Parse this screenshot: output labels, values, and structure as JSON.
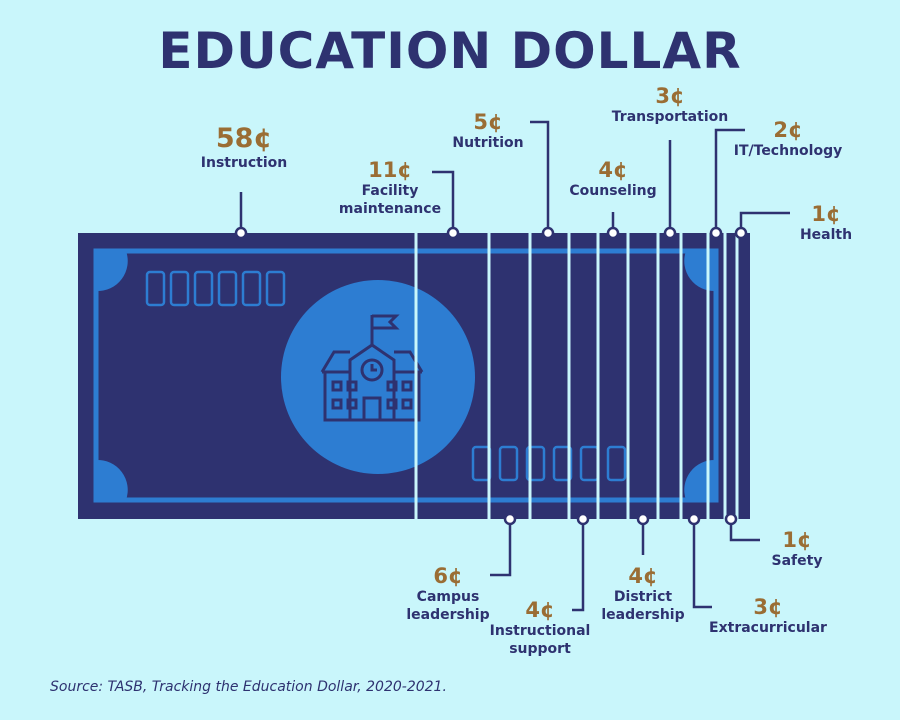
{
  "title": "EDUCATION DOLLAR",
  "items": [
    {
      "amount": "58¢",
      "label": "Instruction"
    },
    {
      "amount": "11¢",
      "label": "Facility maintenance"
    },
    {
      "amount": "5¢",
      "label": "Nutrition"
    },
    {
      "amount": "4¢",
      "label": "Counseling"
    },
    {
      "amount": "3¢",
      "label": "Transportation"
    },
    {
      "amount": "2¢",
      "label": "IT/Technology"
    },
    {
      "amount": "1¢",
      "label": "Health"
    },
    {
      "amount": "6¢",
      "label": "Campus leadership"
    },
    {
      "amount": "4¢",
      "label": "Instructional support"
    },
    {
      "amount": "4¢",
      "label": "District leadership"
    },
    {
      "amount": "3¢",
      "label": "Extracurricular"
    },
    {
      "amount": "1¢",
      "label": "Safety"
    }
  ],
  "source": "Source: TASB, Tracking the Education Dollar, 2020-2021."
}
